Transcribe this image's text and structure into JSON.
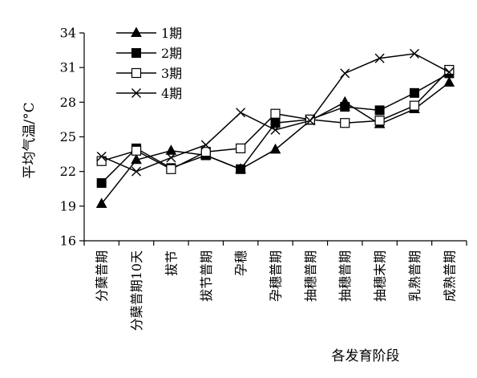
{
  "chart_data": {
    "type": "line",
    "title": "",
    "xlabel": "各发育阶段",
    "ylabel": "平均气温/°C",
    "ylim": [
      16,
      34
    ],
    "yticks": [
      16,
      19,
      22,
      25,
      28,
      31,
      34
    ],
    "grid": false,
    "legend_position": "top-left",
    "categories": [
      "分蘖普期",
      "分蘖普期10天",
      "拔节",
      "拔节普期",
      "孕穗",
      "孕穗普期",
      "抽穗普期",
      "抽穗普期",
      "抽穗末期",
      "乳熟普期",
      "成熟普期"
    ],
    "series": [
      {
        "name": "1期",
        "marker": "filled-triangle",
        "values": [
          19.2,
          23.0,
          23.8,
          23.4,
          22.2,
          23.9,
          26.4,
          28.0,
          26.1,
          27.4,
          29.7
        ]
      },
      {
        "name": "2期",
        "marker": "filled-square",
        "values": [
          21.0,
          24.0,
          22.3,
          23.4,
          22.2,
          26.2,
          26.5,
          27.6,
          27.3,
          28.8,
          30.5
        ]
      },
      {
        "name": "3期",
        "marker": "open-square",
        "values": [
          22.9,
          23.8,
          22.2,
          23.7,
          24.0,
          27.0,
          26.5,
          26.2,
          26.4,
          27.7,
          30.8
        ]
      },
      {
        "name": "4期",
        "marker": "x",
        "values": [
          23.3,
          22.0,
          23.2,
          24.3,
          27.1,
          25.6,
          26.4,
          30.5,
          31.8,
          32.2,
          30.6
        ]
      }
    ]
  }
}
